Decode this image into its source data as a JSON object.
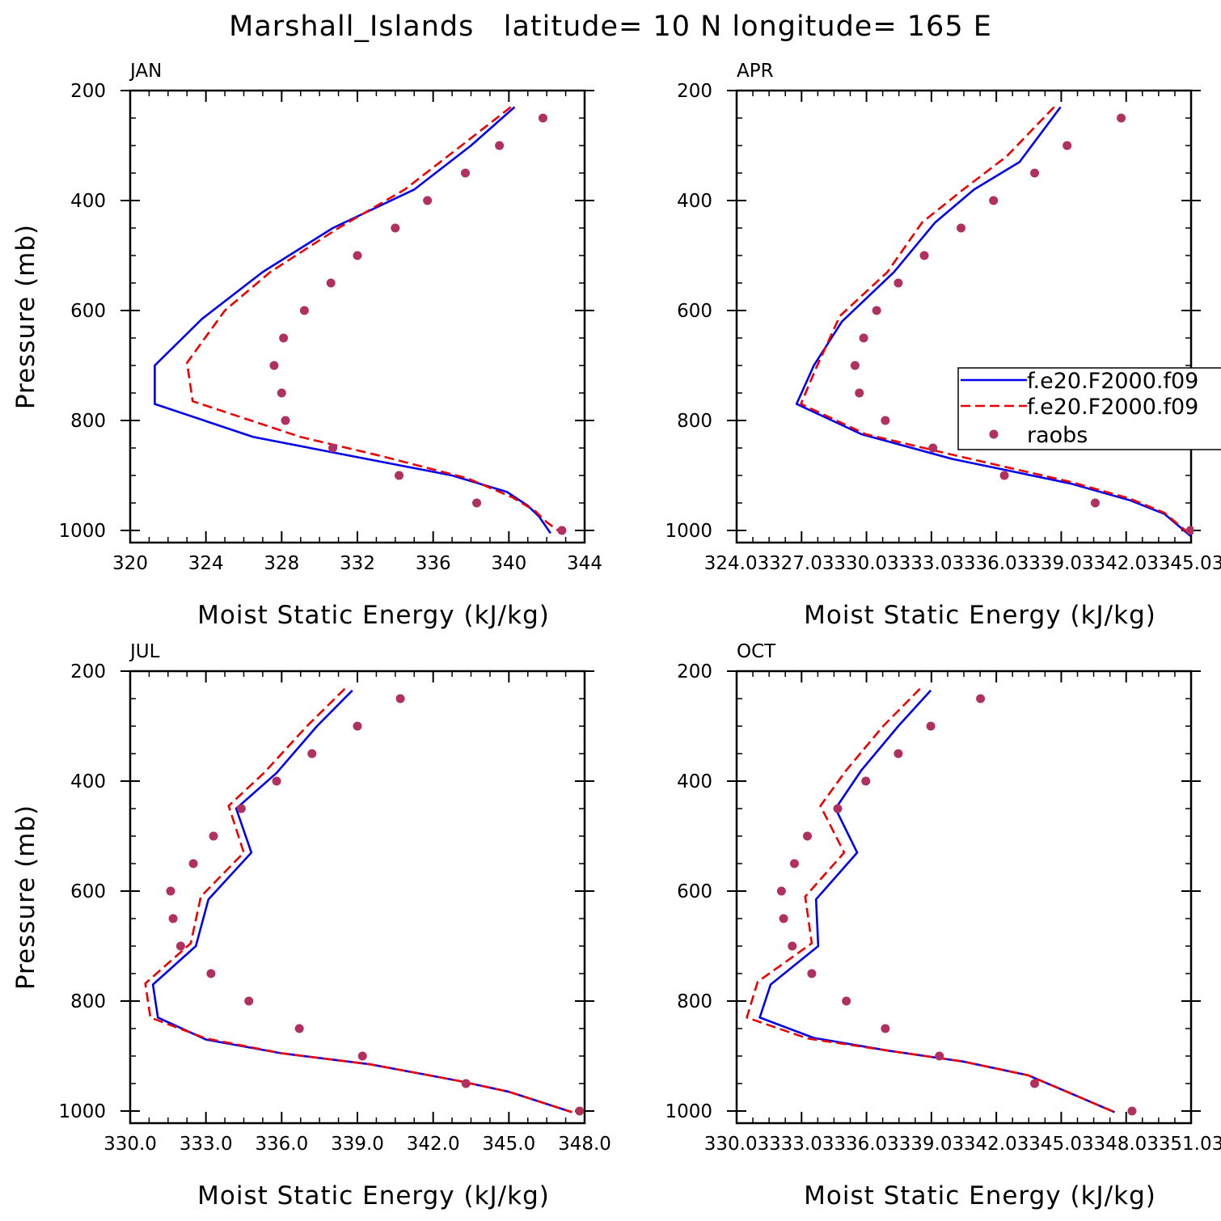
{
  "figure_title": "Marshall_Islands   latitude= 10 N longitude= 165 E",
  "legend": [
    {
      "label": "f.e20.F2000.f09",
      "color": "#0000ee",
      "style": "solid"
    },
    {
      "label": "f.e20.F2000.f09",
      "color": "#ee0000",
      "style": "dashed"
    },
    {
      "label": "raobs",
      "color": "#b03060",
      "style": "dots"
    }
  ],
  "chart_data": [
    {
      "type": "line",
      "title": "JAN",
      "xlabel": "Moist Static Energy (kJ/kg)",
      "ylabel": "Pressure (mb)",
      "xlim": [
        320,
        344
      ],
      "ylim": [
        1000,
        200
      ],
      "xticks": [
        "320",
        "324",
        "328",
        "332",
        "336",
        "340",
        "344"
      ],
      "yticks": [
        "200",
        "400",
        "600",
        "800",
        "1000"
      ],
      "series": [
        {
          "color": "#0000ee",
          "dash": "solid",
          "x": [
            340.3,
            338.0,
            335.0,
            330.7,
            327.0,
            323.8,
            321.3,
            321.3,
            326.5,
            332.5,
            337.0,
            339.9,
            341.0,
            341.6,
            342.2
          ],
          "y": [
            230,
            300,
            380,
            450,
            530,
            615,
            700,
            770,
            830,
            870,
            900,
            930,
            955,
            975,
            1005
          ]
        },
        {
          "color": "#ee0000",
          "dash": "dashed",
          "x": [
            340.1,
            337.5,
            334.5,
            331.0,
            327.4,
            325.0,
            323.0,
            323.3,
            329.0,
            333.3,
            337.8,
            340.2,
            341.4,
            342.0,
            342.8
          ],
          "y": [
            230,
            300,
            380,
            450,
            530,
            600,
            695,
            765,
            830,
            865,
            905,
            940,
            965,
            985,
            1005
          ]
        },
        {
          "color": "#b03060",
          "dash": "dots",
          "x": [
            341.8,
            339.5,
            337.7,
            335.7,
            334.0,
            332.0,
            330.6,
            329.2,
            328.1,
            327.6,
            328.0,
            328.2,
            330.7,
            334.2,
            338.3,
            342.8
          ],
          "y": [
            250,
            300,
            350,
            400,
            450,
            500,
            550,
            600,
            650,
            700,
            750,
            800,
            850,
            900,
            950,
            1000
          ]
        }
      ]
    },
    {
      "type": "line",
      "title": "APR",
      "xlabel": "Moist Static Energy (kJ/kg)",
      "ylabel": "",
      "xlim": [
        324.03,
        345.03
      ],
      "ylim": [
        1000,
        200
      ],
      "xticks": [
        "324.03",
        "327.03",
        "330.03",
        "333.03",
        "336.03",
        "339.03",
        "342.03",
        "345.03"
      ],
      "yticks": [
        "200",
        "400",
        "600",
        "800",
        "1000"
      ],
      "series": [
        {
          "color": "#0000ee",
          "dash": "solid",
          "x": [
            339.0,
            337.1,
            335.0,
            333.2,
            331.3,
            328.9,
            327.6,
            326.8,
            329.8,
            334.0,
            339.5,
            342.2,
            343.8,
            345.0
          ],
          "y": [
            230,
            330,
            380,
            440,
            530,
            620,
            700,
            770,
            825,
            870,
            915,
            945,
            970,
            1010
          ]
        },
        {
          "color": "#ee0000",
          "dash": "dashed",
          "x": [
            338.7,
            336.5,
            334.5,
            332.6,
            331.0,
            328.8,
            327.7,
            327.0,
            330.0,
            334.3,
            339.5,
            342.2,
            343.8,
            345.0
          ],
          "y": [
            230,
            320,
            380,
            440,
            530,
            610,
            705,
            770,
            825,
            865,
            912,
            942,
            968,
            1008
          ]
        },
        {
          "color": "#b03060",
          "dash": "dots",
          "x": [
            341.8,
            339.3,
            337.8,
            335.9,
            334.4,
            332.7,
            331.5,
            330.5,
            329.9,
            329.5,
            329.7,
            330.9,
            333.1,
            336.4,
            340.6,
            345.0
          ],
          "y": [
            250,
            300,
            350,
            400,
            450,
            500,
            550,
            600,
            650,
            700,
            750,
            800,
            850,
            900,
            950,
            1000
          ]
        }
      ]
    },
    {
      "type": "line",
      "title": "JUL",
      "xlabel": "Moist Static Energy (kJ/kg)",
      "ylabel": "Pressure (mb)",
      "xlim": [
        330.0,
        348.0
      ],
      "ylim": [
        1000,
        200
      ],
      "xticks": [
        "330.0",
        "333.0",
        "336.0",
        "339.0",
        "342.0",
        "345.0",
        "348.0"
      ],
      "yticks": [
        "200",
        "400",
        "600",
        "800",
        "1000"
      ],
      "series": [
        {
          "color": "#0000ee",
          "dash": "solid",
          "x": [
            338.8,
            337.4,
            335.8,
            334.2,
            334.8,
            333.1,
            332.6,
            330.9,
            331.1,
            333.0,
            336.0,
            339.5,
            343.0,
            345.0,
            347.5
          ],
          "y": [
            235,
            300,
            385,
            450,
            530,
            615,
            700,
            770,
            830,
            870,
            895,
            915,
            945,
            965,
            1002
          ]
        },
        {
          "color": "#ee0000",
          "dash": "dashed",
          "x": [
            338.5,
            337.0,
            335.3,
            333.9,
            334.5,
            332.8,
            332.4,
            330.6,
            330.8,
            333.0,
            336.0,
            339.5,
            343.0,
            345.0,
            347.5
          ],
          "y": [
            232,
            300,
            385,
            445,
            530,
            610,
            695,
            768,
            830,
            868,
            895,
            915,
            945,
            965,
            1002
          ]
        },
        {
          "color": "#b03060",
          "dash": "dots",
          "x": [
            340.7,
            339.0,
            337.2,
            335.8,
            334.4,
            333.3,
            332.5,
            331.6,
            331.7,
            332.0,
            333.2,
            334.7,
            336.7,
            339.2,
            343.3,
            347.8
          ],
          "y": [
            250,
            300,
            350,
            400,
            450,
            500,
            550,
            600,
            650,
            700,
            750,
            800,
            850,
            900,
            950,
            1000
          ]
        }
      ]
    },
    {
      "type": "line",
      "title": "OCT",
      "xlabel": "Moist Static Energy (kJ/kg)",
      "ylabel": "",
      "xlim": [
        330.03,
        351.03
      ],
      "ylim": [
        1000,
        200
      ],
      "xticks": [
        "330.03",
        "333.03",
        "336.03",
        "339.03",
        "342.03",
        "345.03",
        "348.03",
        "351.03"
      ],
      "yticks": [
        "200",
        "400",
        "600",
        "800",
        "1000"
      ],
      "series": [
        {
          "color": "#0000ee",
          "dash": "solid",
          "x": [
            339.0,
            337.5,
            335.8,
            334.6,
            335.6,
            333.7,
            333.8,
            331.6,
            331.1,
            333.6,
            337.0,
            340.5,
            343.5,
            345.0,
            347.5
          ],
          "y": [
            235,
            300,
            380,
            450,
            530,
            615,
            700,
            770,
            830,
            867,
            890,
            910,
            935,
            960,
            1002
          ]
        },
        {
          "color": "#ee0000",
          "dash": "dashed",
          "x": [
            338.5,
            336.8,
            335.1,
            333.9,
            335.0,
            333.2,
            333.5,
            331.0,
            330.5,
            333.3,
            337.0,
            340.5,
            343.5,
            345.0,
            347.5
          ],
          "y": [
            232,
            300,
            380,
            445,
            530,
            610,
            695,
            765,
            830,
            868,
            890,
            910,
            935,
            960,
            1002
          ]
        },
        {
          "color": "#b03060",
          "dash": "dots",
          "x": [
            341.3,
            339.0,
            337.5,
            336.0,
            334.7,
            333.3,
            332.7,
            332.1,
            332.2,
            332.6,
            333.5,
            335.1,
            336.9,
            339.4,
            343.8,
            348.3
          ],
          "y": [
            250,
            300,
            350,
            400,
            450,
            500,
            550,
            600,
            650,
            700,
            750,
            800,
            850,
            900,
            950,
            1000
          ]
        }
      ]
    }
  ]
}
